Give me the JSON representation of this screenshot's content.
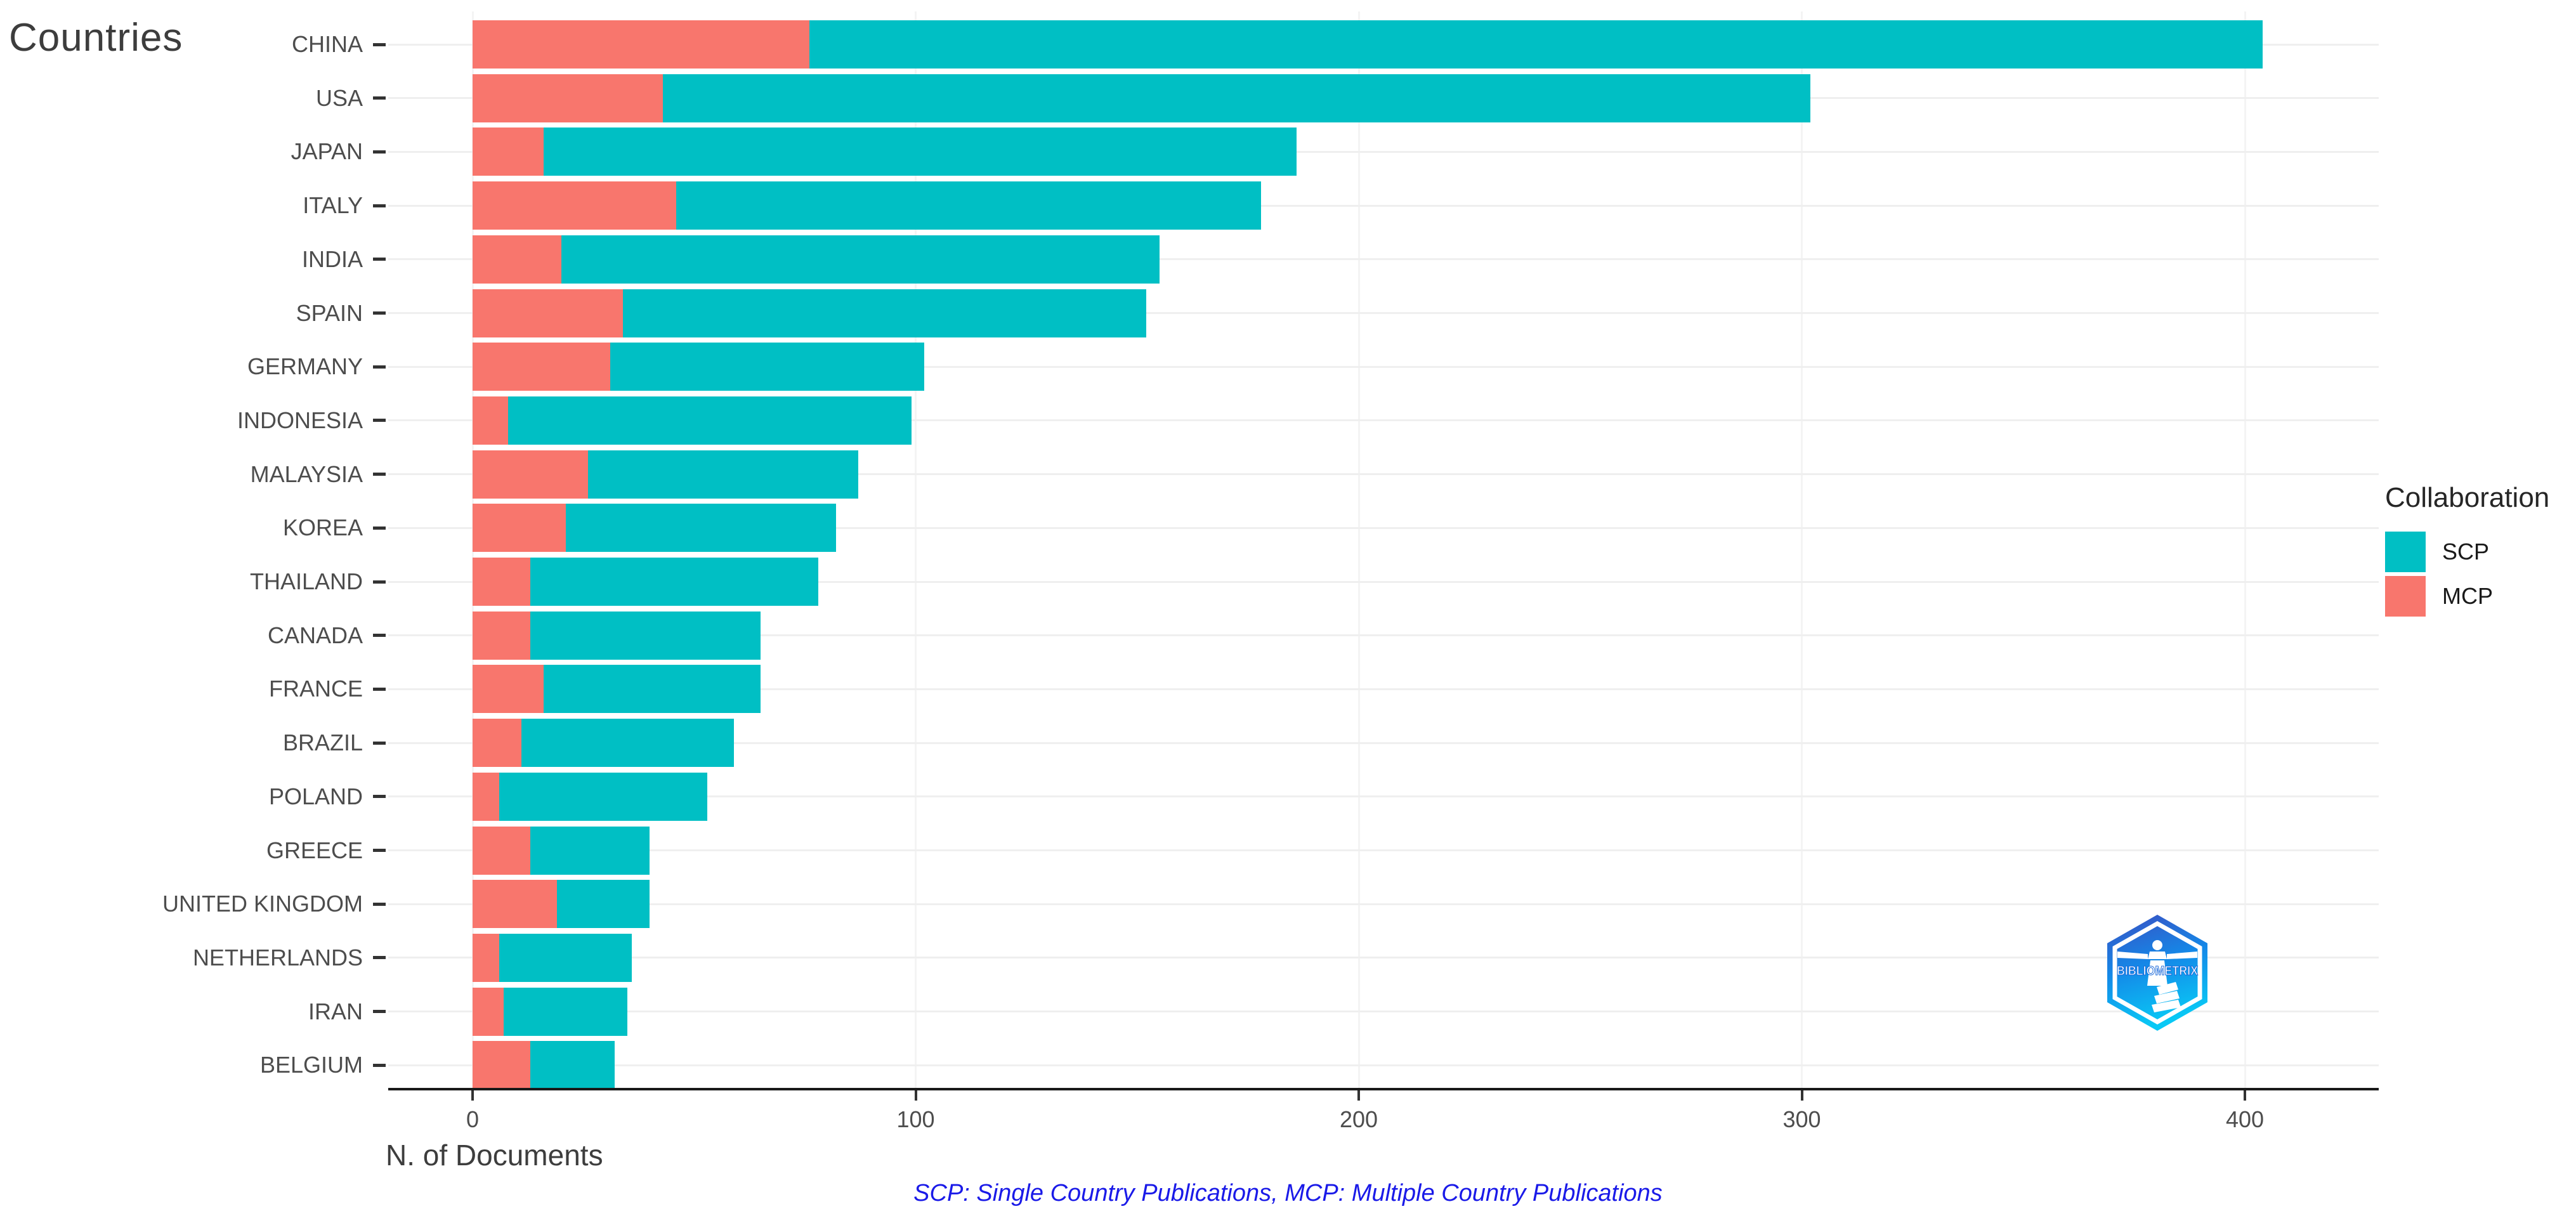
{
  "title": "Countries",
  "x_axis": {
    "label": "N. of Documents",
    "ticks": [
      "0",
      "100",
      "200",
      "300",
      "400"
    ],
    "tick_values": [
      0,
      100,
      200,
      300,
      400
    ]
  },
  "footer": "SCP: Single Country Publications, MCP: Multiple Country Publications",
  "legend": {
    "title": "Collaboration",
    "items": [
      {
        "label": "SCP",
        "color": "#00BFC4"
      },
      {
        "label": "MCP",
        "color": "#F8766D"
      }
    ]
  },
  "logo": {
    "text": "BIBLIOMETRIX",
    "name": "bibliometrix-logo"
  },
  "colors": {
    "scp": "#00BFC4",
    "mcp": "#F8766D",
    "axis_text": "#4d4d4d",
    "footer_blue": "#1a1ae8",
    "gridline": "#efefef"
  },
  "chart_data": {
    "type": "bar",
    "orientation": "horizontal",
    "stacked": true,
    "stack_order": [
      "MCP",
      "SCP"
    ],
    "title": "Countries",
    "xlabel": "N. of Documents",
    "ylabel": "Countries",
    "xlim": [
      0,
      420
    ],
    "x_ticks": [
      0,
      100,
      200,
      300,
      400
    ],
    "grid": true,
    "legend_position": "right",
    "legend_title": "Collaboration",
    "categories": [
      "CHINA",
      "USA",
      "JAPAN",
      "ITALY",
      "INDIA",
      "SPAIN",
      "GERMANY",
      "INDONESIA",
      "MALAYSIA",
      "KOREA",
      "THAILAND",
      "CANADA",
      "FRANCE",
      "BRAZIL",
      "POLAND",
      "GREECE",
      "UNITED KINGDOM",
      "NETHERLANDS",
      "IRAN",
      "BELGIUM"
    ],
    "series": [
      {
        "name": "SCP",
        "color": "#00BFC4",
        "values": [
          328,
          259,
          170,
          132,
          135,
          118,
          71,
          91,
          61,
          61,
          65,
          52,
          49,
          48,
          47,
          27,
          21,
          30,
          28,
          19
        ]
      },
      {
        "name": "MCP",
        "color": "#F8766D",
        "values": [
          76,
          43,
          16,
          46,
          20,
          34,
          31,
          8,
          26,
          21,
          13,
          13,
          16,
          11,
          6,
          13,
          19,
          6,
          7,
          13
        ]
      }
    ],
    "totals": [
      404,
      302,
      186,
      178,
      155,
      152,
      102,
      99,
      87,
      82,
      78,
      65,
      65,
      59,
      53,
      40,
      40,
      36,
      35,
      32
    ],
    "note": "SCP: Single Country Publications, MCP: Multiple Country Publications"
  }
}
